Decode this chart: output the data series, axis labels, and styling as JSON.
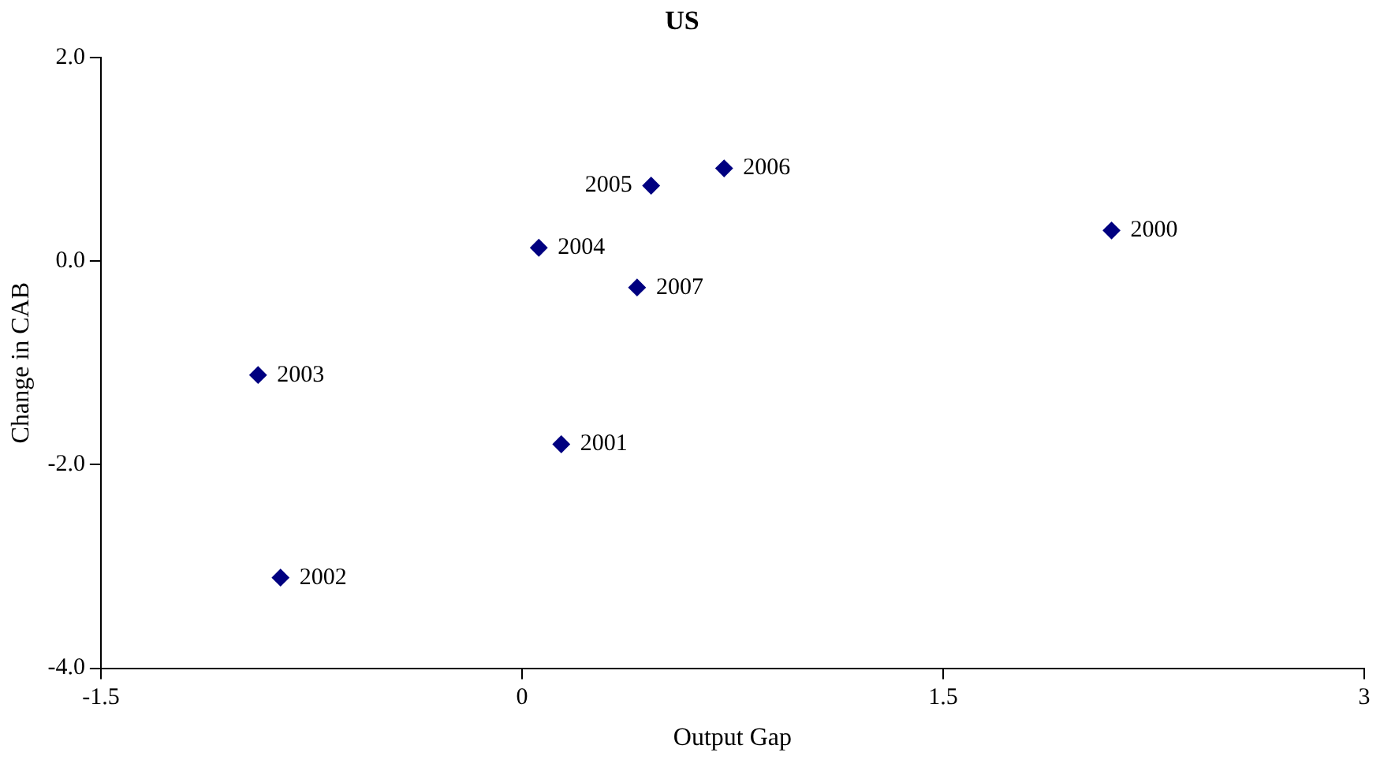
{
  "chart_data": {
    "type": "scatter",
    "title": "US",
    "xlabel": "Output Gap",
    "ylabel": "Change in CAB",
    "x": [
      2.1,
      0.14,
      -0.86,
      -0.94,
      0.06,
      0.46,
      0.72,
      0.41
    ],
    "values": [
      0.3,
      -1.8,
      -3.11,
      -1.12,
      0.13,
      0.74,
      0.91,
      -0.26
    ],
    "annotations": [
      {
        "text": "2000",
        "x": 2.1,
        "y": 0.3
      },
      {
        "text": "2001",
        "x": 0.14,
        "y": -1.8
      },
      {
        "text": "2002",
        "x": -0.86,
        "y": -3.11
      },
      {
        "text": "2003",
        "x": -0.94,
        "y": -1.12
      },
      {
        "text": "2004",
        "x": 0.06,
        "y": 0.13
      },
      {
        "text": "2005",
        "x": 0.46,
        "y": 0.74
      },
      {
        "text": "2006",
        "x": 0.72,
        "y": 0.91
      },
      {
        "text": "2007",
        "x": 0.41,
        "y": -0.26
      }
    ],
    "color": "#000080",
    "marker": "diamond",
    "grid": false,
    "legend": false,
    "xlim": [
      -1.5,
      3
    ],
    "xticks": [
      -1.5,
      0,
      1.5,
      3
    ],
    "ylim": [
      -4,
      2
    ],
    "yticks": [
      {
        "value": -4,
        "label": "-4.0"
      },
      {
        "value": -2,
        "label": "-2.0"
      },
      {
        "value": 0,
        "label": "0.0"
      },
      {
        "value": 2,
        "label": "2.0"
      }
    ]
  }
}
